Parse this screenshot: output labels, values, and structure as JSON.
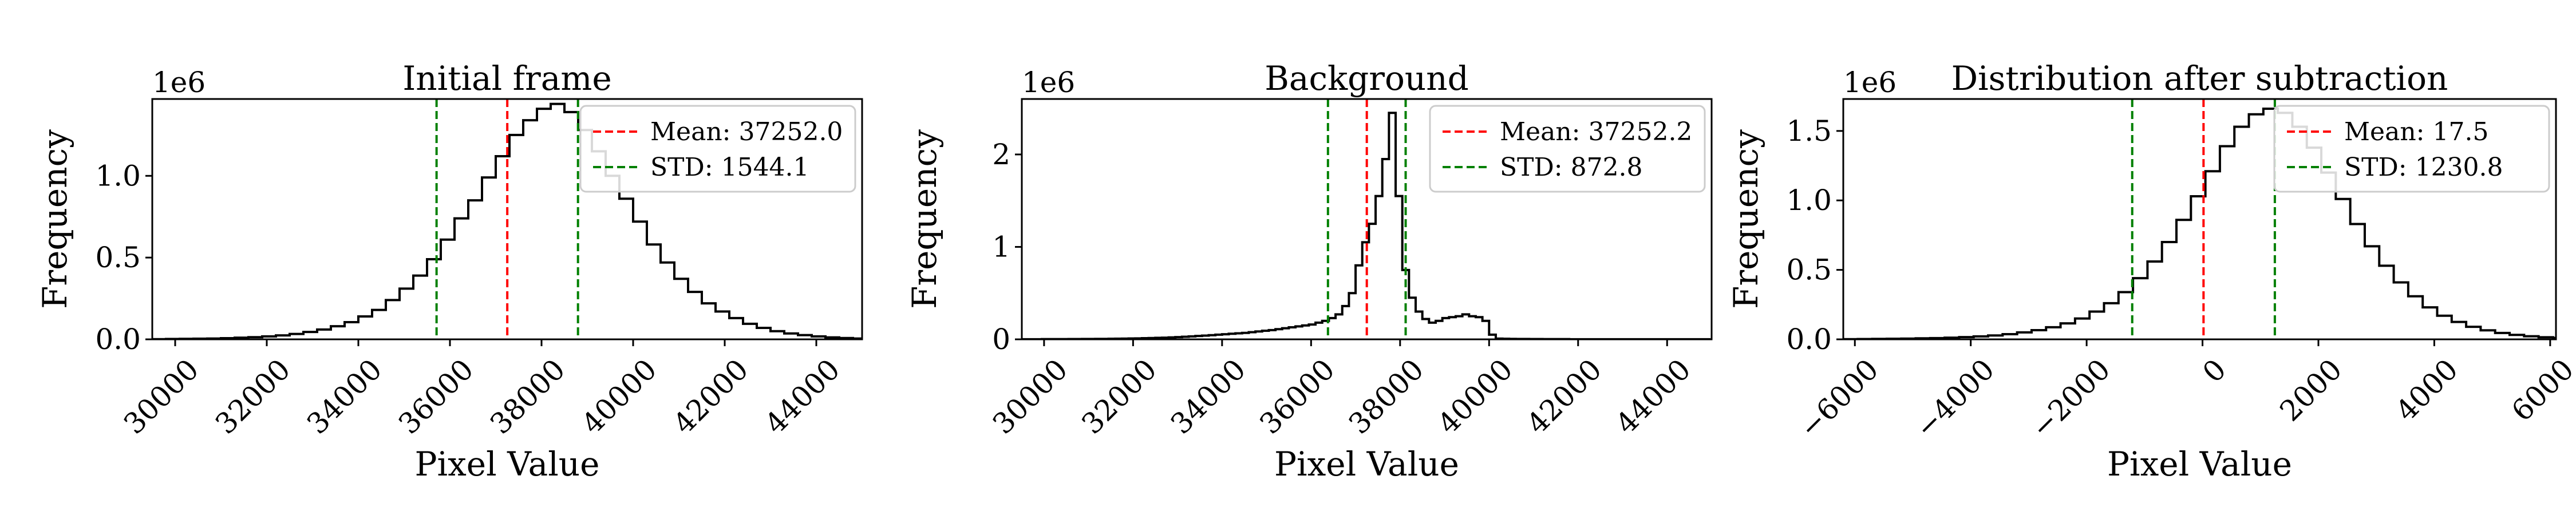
{
  "chart_data": [
    {
      "type": "histogram",
      "title": "Initial frame",
      "xlabel": "Pixel Value",
      "ylabel": "Frequency",
      "y_offset_label": "1e6",
      "xlim": [
        29500,
        45000
      ],
      "ylim": [
        0,
        1.47
      ],
      "xticks": [
        30000,
        32000,
        34000,
        36000,
        38000,
        40000,
        42000,
        44000
      ],
      "yticks": [
        0.0,
        0.5,
        1.0
      ],
      "ytick_labels": [
        "0.0",
        "0.5",
        "1.0"
      ],
      "bin_edges_start": 29500,
      "bin_width": 300,
      "values": [
        0.001,
        0.002,
        0.003,
        0.004,
        0.005,
        0.007,
        0.01,
        0.013,
        0.018,
        0.024,
        0.033,
        0.045,
        0.06,
        0.08,
        0.105,
        0.14,
        0.18,
        0.24,
        0.31,
        0.39,
        0.49,
        0.61,
        0.74,
        0.85,
        0.99,
        1.12,
        1.25,
        1.34,
        1.41,
        1.44,
        1.39,
        1.28,
        1.15,
        1.0,
        0.86,
        0.72,
        0.58,
        0.47,
        0.37,
        0.29,
        0.22,
        0.17,
        0.13,
        0.095,
        0.07,
        0.05,
        0.036,
        0.026,
        0.018,
        0.012,
        0.008,
        0.005
      ],
      "mean": 37252.0,
      "std": 1544.1,
      "legend": [
        "Mean: 37252.0",
        "STD: 1544.1"
      ],
      "legend_loc": "upper right",
      "colors": {
        "hist": "#000000",
        "mean": "#ff0000",
        "std": "#008000"
      }
    },
    {
      "type": "histogram",
      "title": "Background",
      "xlabel": "Pixel Value",
      "ylabel": "Frequency",
      "y_offset_label": "1e6",
      "xlim": [
        29500,
        45000
      ],
      "ylim": [
        0,
        2.6
      ],
      "xticks": [
        30000,
        32000,
        34000,
        36000,
        38000,
        40000,
        42000,
        44000
      ],
      "yticks": [
        0,
        1,
        2
      ],
      "ytick_labels": [
        "0",
        "1",
        "2"
      ],
      "bin_edges_start": 29500,
      "bin_width": 150,
      "values": [
        0.001,
        0.001,
        0.001,
        0.002,
        0.002,
        0.002,
        0.002,
        0.003,
        0.003,
        0.004,
        0.004,
        0.005,
        0.005,
        0.006,
        0.007,
        0.008,
        0.009,
        0.01,
        0.012,
        0.014,
        0.016,
        0.018,
        0.021,
        0.024,
        0.028,
        0.032,
        0.036,
        0.04,
        0.045,
        0.05,
        0.055,
        0.06,
        0.065,
        0.07,
        0.077,
        0.085,
        0.093,
        0.1,
        0.11,
        0.12,
        0.13,
        0.14,
        0.15,
        0.16,
        0.18,
        0.2,
        0.23,
        0.27,
        0.36,
        0.5,
        0.8,
        1.05,
        1.25,
        1.55,
        1.95,
        2.45,
        1.55,
        0.75,
        0.45,
        0.3,
        0.22,
        0.18,
        0.2,
        0.23,
        0.24,
        0.25,
        0.27,
        0.25,
        0.24,
        0.2,
        0.05,
        0.008,
        0.006,
        0.005,
        0.004,
        0.004,
        0.003,
        0.003,
        0.002,
        0.002,
        0.002,
        0.002,
        0.001,
        0.001,
        0.001,
        0.001,
        0.001,
        0.001,
        0.001,
        0.001,
        0.001,
        0.001,
        0.001,
        0.001,
        0.001,
        0.001,
        0.001,
        0.001,
        0.001,
        0.001,
        0.001,
        0.001,
        0.001
      ],
      "mean": 37252.2,
      "std": 872.8,
      "legend": [
        "Mean: 37252.2",
        "STD: 872.8"
      ],
      "legend_loc": "upper right",
      "colors": {
        "hist": "#000000",
        "mean": "#ff0000",
        "std": "#008000"
      }
    },
    {
      "type": "histogram",
      "title": "Distribution after subtraction",
      "xlabel": "Pixel Value",
      "ylabel": "Frequency",
      "y_offset_label": "1e6",
      "xlim": [
        -6200,
        6100
      ],
      "ylim": [
        0,
        1.73
      ],
      "xticks": [
        -6000,
        -4000,
        -2000,
        0,
        2000,
        4000,
        6000
      ],
      "xtick_labels": [
        "−6000",
        "−4000",
        "−2000",
        "0",
        "2000",
        "4000",
        "6000"
      ],
      "yticks": [
        0.0,
        0.5,
        1.0,
        1.5
      ],
      "ytick_labels": [
        "0.0",
        "0.5",
        "1.0",
        "1.5"
      ],
      "bin_edges_start": -6200,
      "bin_width": 250,
      "values": [
        0.001,
        0.002,
        0.003,
        0.004,
        0.005,
        0.007,
        0.009,
        0.012,
        0.016,
        0.021,
        0.028,
        0.037,
        0.05,
        0.066,
        0.087,
        0.115,
        0.15,
        0.2,
        0.26,
        0.34,
        0.44,
        0.56,
        0.7,
        0.86,
        1.03,
        1.21,
        1.39,
        1.53,
        1.62,
        1.66,
        1.63,
        1.53,
        1.38,
        1.2,
        1.01,
        0.83,
        0.67,
        0.53,
        0.41,
        0.31,
        0.23,
        0.17,
        0.125,
        0.09,
        0.065,
        0.046,
        0.032,
        0.022,
        0.015,
        0.01
      ],
      "mean": 17.5,
      "std": 1230.8,
      "legend": [
        "Mean: 17.5",
        "STD: 1230.8"
      ],
      "legend_loc": "upper right",
      "colors": {
        "hist": "#000000",
        "mean": "#ff0000",
        "std": "#008000"
      }
    }
  ]
}
